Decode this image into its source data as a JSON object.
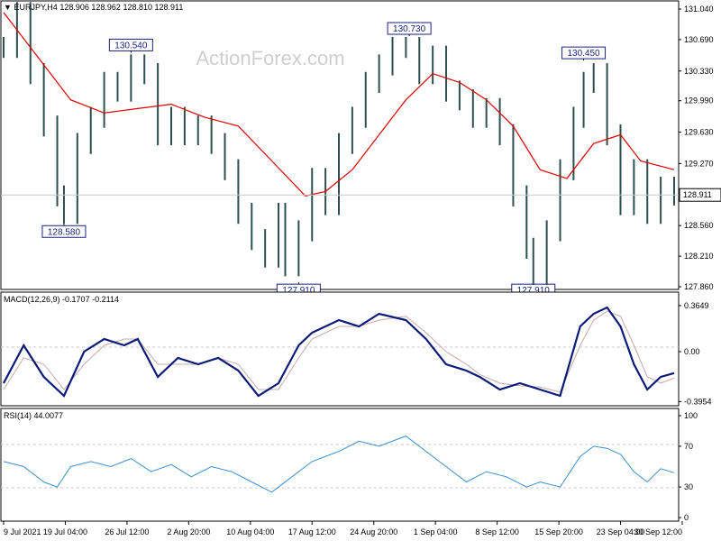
{
  "header": {
    "main": {
      "symbol": "EURJPY,H4",
      "open": "128.906",
      "high": "128.962",
      "low": "128.810",
      "close": "128.911"
    },
    "macd": {
      "label": "MACD(12,26,9)",
      "macd": "-0.1707",
      "signal": "-0.2114"
    },
    "rsi": {
      "label": "RSI(14)",
      "value": "44.0077"
    }
  },
  "watermark": "ActionForex.com",
  "colors": {
    "price": "#2f4f4f",
    "ma": "#dd0000",
    "macd": "#0c1a7a",
    "macd_signal": "#c9a8a8",
    "rsi": "#3a8fd0",
    "grid": "#c8c8c8",
    "bg": "#ffffff"
  },
  "chart_data": [
    {
      "type": "line",
      "panel": "price",
      "title": "EURJPY,H4",
      "ylim": [
        127.86,
        131.04
      ],
      "yticks": [
        "131.040",
        "130.690",
        "130.330",
        "129.990",
        "129.630",
        "129.270",
        "128.560",
        "128.210",
        "127.860"
      ],
      "current": {
        "value": 128.911,
        "label": "128.911"
      },
      "annotations": [
        {
          "label": "130.540",
          "x": 0.19,
          "y": 130.54
        },
        {
          "label": "128.580",
          "x": 0.09,
          "y": 128.58
        },
        {
          "label": "127.910",
          "x": 0.44,
          "y": 127.91
        },
        {
          "label": "130.730",
          "x": 0.605,
          "y": 130.73
        },
        {
          "label": "127.910",
          "x": 0.79,
          "y": 127.91
        },
        {
          "label": "130.450",
          "x": 0.865,
          "y": 130.45
        }
      ],
      "series": [
        {
          "kind": "bars",
          "x": [
            0,
            0.02,
            0.04,
            0.06,
            0.08,
            0.09,
            0.11,
            0.13,
            0.15,
            0.17,
            0.19,
            0.21,
            0.23,
            0.25,
            0.27,
            0.29,
            0.31,
            0.33,
            0.35,
            0.37,
            0.39,
            0.41,
            0.42,
            0.44,
            0.46,
            0.48,
            0.5,
            0.52,
            0.54,
            0.56,
            0.58,
            0.6,
            0.62,
            0.64,
            0.66,
            0.68,
            0.7,
            0.72,
            0.74,
            0.76,
            0.78,
            0.79,
            0.81,
            0.83,
            0.85,
            0.865,
            0.88,
            0.9,
            0.92,
            0.94,
            0.96,
            0.98,
            1
          ],
          "values": [
            130.6,
            131.0,
            130.3,
            129.7,
            128.9,
            128.7,
            129.5,
            129.8,
            130.2,
            130.1,
            130.4,
            130.3,
            129.6,
            129.8,
            129.6,
            129.7,
            129.5,
            129.2,
            128.7,
            128.4,
            128.2,
            128.7,
            128.1,
            128.5,
            129.1,
            128.8,
            129.5,
            129.8,
            130.2,
            130.4,
            130.6,
            130.6,
            130.3,
            130.5,
            130.1,
            130.0,
            129.8,
            129.9,
            129.6,
            128.9,
            128.3,
            128.0,
            128.5,
            129.2,
            129.8,
            130.2,
            130.3,
            129.6,
            128.8,
            129.2,
            128.7,
            129.0,
            128.911
          ]
        },
        {
          "kind": "line",
          "x": [
            0,
            0.05,
            0.1,
            0.15,
            0.2,
            0.25,
            0.3,
            0.35,
            0.4,
            0.45,
            0.48,
            0.52,
            0.56,
            0.6,
            0.64,
            0.68,
            0.72,
            0.76,
            0.8,
            0.84,
            0.88,
            0.92,
            0.95,
            1
          ],
          "values": [
            131.0,
            130.5,
            130.0,
            129.85,
            129.9,
            129.95,
            129.8,
            129.7,
            129.3,
            128.9,
            128.95,
            129.2,
            129.6,
            130.0,
            130.3,
            130.2,
            130.0,
            129.7,
            129.2,
            129.1,
            129.5,
            129.6,
            129.3,
            129.2
          ]
        }
      ]
    },
    {
      "type": "line",
      "panel": "macd",
      "title": "MACD(12,26,9)",
      "ylim": [
        -0.4,
        0.4
      ],
      "yticks": [
        "0.3649",
        "0.00",
        "-0.3954"
      ],
      "series": [
        {
          "x": [
            0,
            0.03,
            0.06,
            0.09,
            0.12,
            0.15,
            0.18,
            0.2,
            0.23,
            0.26,
            0.29,
            0.32,
            0.35,
            0.38,
            0.41,
            0.44,
            0.46,
            0.5,
            0.53,
            0.56,
            0.6,
            0.63,
            0.66,
            0.69,
            0.71,
            0.74,
            0.77,
            0.8,
            0.83,
            0.86,
            0.88,
            0.9,
            0.92,
            0.94,
            0.96,
            0.98,
            1
          ],
          "values": [
            -0.25,
            0.05,
            -0.2,
            -0.35,
            0.0,
            0.1,
            0.05,
            0.1,
            -0.2,
            -0.05,
            -0.1,
            -0.05,
            -0.15,
            -0.35,
            -0.25,
            0.05,
            0.15,
            0.25,
            0.2,
            0.3,
            0.25,
            0.1,
            -0.1,
            -0.15,
            -0.2,
            -0.3,
            -0.25,
            -0.3,
            -0.35,
            0.2,
            0.3,
            0.35,
            0.2,
            -0.1,
            -0.3,
            -0.2,
            -0.17
          ]
        },
        {
          "x": [
            0,
            0.03,
            0.06,
            0.09,
            0.12,
            0.15,
            0.18,
            0.2,
            0.23,
            0.26,
            0.29,
            0.32,
            0.35,
            0.38,
            0.41,
            0.44,
            0.46,
            0.5,
            0.53,
            0.56,
            0.6,
            0.63,
            0.66,
            0.69,
            0.71,
            0.74,
            0.77,
            0.8,
            0.83,
            0.86,
            0.88,
            0.9,
            0.92,
            0.94,
            0.96,
            0.98,
            1
          ],
          "values": [
            -0.3,
            -0.05,
            -0.1,
            -0.3,
            -0.1,
            0.05,
            0.1,
            0.1,
            -0.1,
            -0.1,
            -0.1,
            -0.05,
            -0.1,
            -0.3,
            -0.3,
            -0.05,
            0.1,
            0.2,
            0.2,
            0.25,
            0.28,
            0.15,
            0.0,
            -0.1,
            -0.18,
            -0.25,
            -0.27,
            -0.28,
            -0.32,
            0.05,
            0.25,
            0.32,
            0.28,
            0.05,
            -0.2,
            -0.25,
            -0.21
          ]
        }
      ]
    },
    {
      "type": "line",
      "panel": "rsi",
      "title": "RSI(14)",
      "ylim": [
        0,
        100
      ],
      "yticks": [
        "100",
        "70",
        "30",
        "0"
      ],
      "levels": [
        70,
        30
      ],
      "xticks": [
        "9 Jul 2021",
        "19 Jul 04:00",
        "26 Jul 12:00",
        "2 Aug 20:00",
        "10 Aug 04:00",
        "17 Aug 12:00",
        "24 Aug 20:00",
        "1 Sep 04:00",
        "8 Sep 12:00",
        "15 Sep 20:00",
        "23 Sep 04:00",
        "30 Sep 12:00"
      ],
      "series": [
        {
          "x": [
            0,
            0.03,
            0.06,
            0.08,
            0.1,
            0.13,
            0.16,
            0.19,
            0.22,
            0.25,
            0.28,
            0.31,
            0.34,
            0.37,
            0.4,
            0.43,
            0.46,
            0.5,
            0.53,
            0.56,
            0.6,
            0.63,
            0.66,
            0.69,
            0.72,
            0.75,
            0.78,
            0.8,
            0.83,
            0.86,
            0.88,
            0.9,
            0.92,
            0.94,
            0.96,
            0.98,
            1
          ],
          "values": [
            55,
            50,
            35,
            30,
            50,
            55,
            50,
            58,
            45,
            52,
            40,
            50,
            45,
            35,
            25,
            40,
            55,
            65,
            75,
            70,
            80,
            65,
            50,
            35,
            45,
            40,
            30,
            35,
            30,
            60,
            70,
            68,
            62,
            45,
            35,
            48,
            44
          ]
        }
      ]
    }
  ]
}
